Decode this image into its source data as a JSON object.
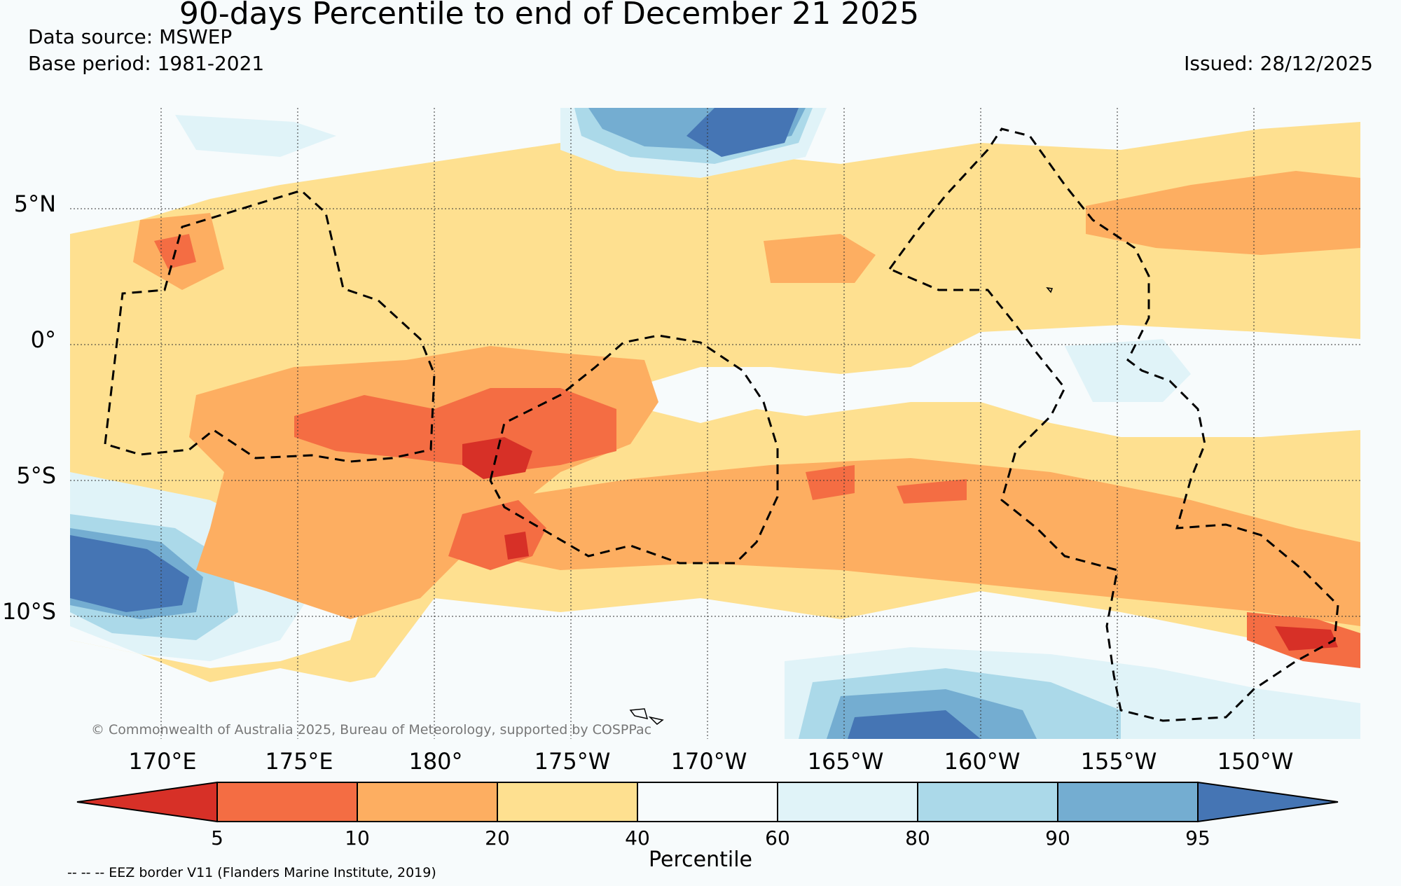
{
  "title": "90-days Percentile to end of December 21 2025",
  "data_source": "Data source: MSWEP",
  "base_period": "Base period: 1981-2021",
  "issued": "Issued: 28/12/2025",
  "lat_labels": [
    "5°N",
    "0°",
    "5°S",
    "10°S"
  ],
  "lon_labels": [
    "170°E",
    "175°E",
    "180°",
    "175°W",
    "170°W",
    "165°W",
    "160°W",
    "155°W",
    "150°W"
  ],
  "copyright": "© Commonwealth of Australia 2025, Bureau of Meteorology, supported by COSPPac",
  "colorbar": {
    "label": "Percentile",
    "ticks": [
      "5",
      "10",
      "20",
      "40",
      "60",
      "80",
      "90",
      "95"
    ],
    "colors": [
      "#d73027",
      "#f46d43",
      "#fdae61",
      "#fee090",
      "#f7fbfc",
      "#e0f3f8",
      "#abd9e9",
      "#74add1",
      "#4575b4"
    ]
  },
  "footnote": "-- -- -- EEZ border V11 (Flanders Marine Institute, 2019)"
}
